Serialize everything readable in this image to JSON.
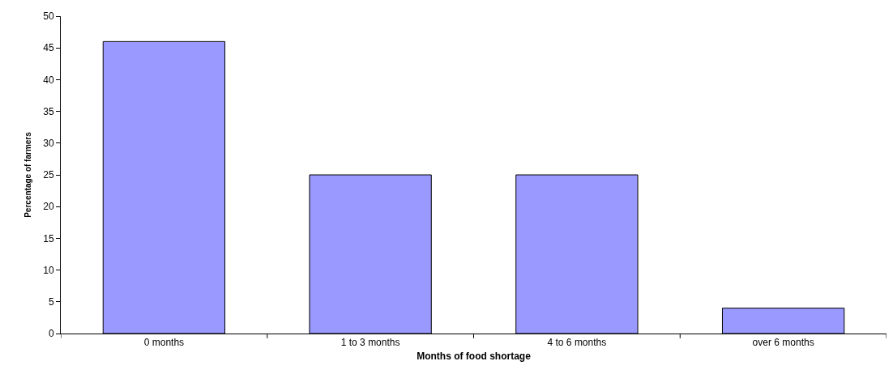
{
  "chart_data": {
    "type": "bar",
    "xlabel": "Months of food shortage",
    "ylabel": "Percentage of farmers",
    "categories": [
      "0 months",
      "1 to 3 months",
      "4 to 6 months",
      "over 6 months"
    ],
    "values": [
      46,
      25,
      25,
      4
    ],
    "color": "#9999ff",
    "ylim": [
      0,
      50
    ],
    "yticks": [
      0,
      5,
      10,
      15,
      20,
      25,
      30,
      35,
      40,
      45,
      50
    ]
  }
}
